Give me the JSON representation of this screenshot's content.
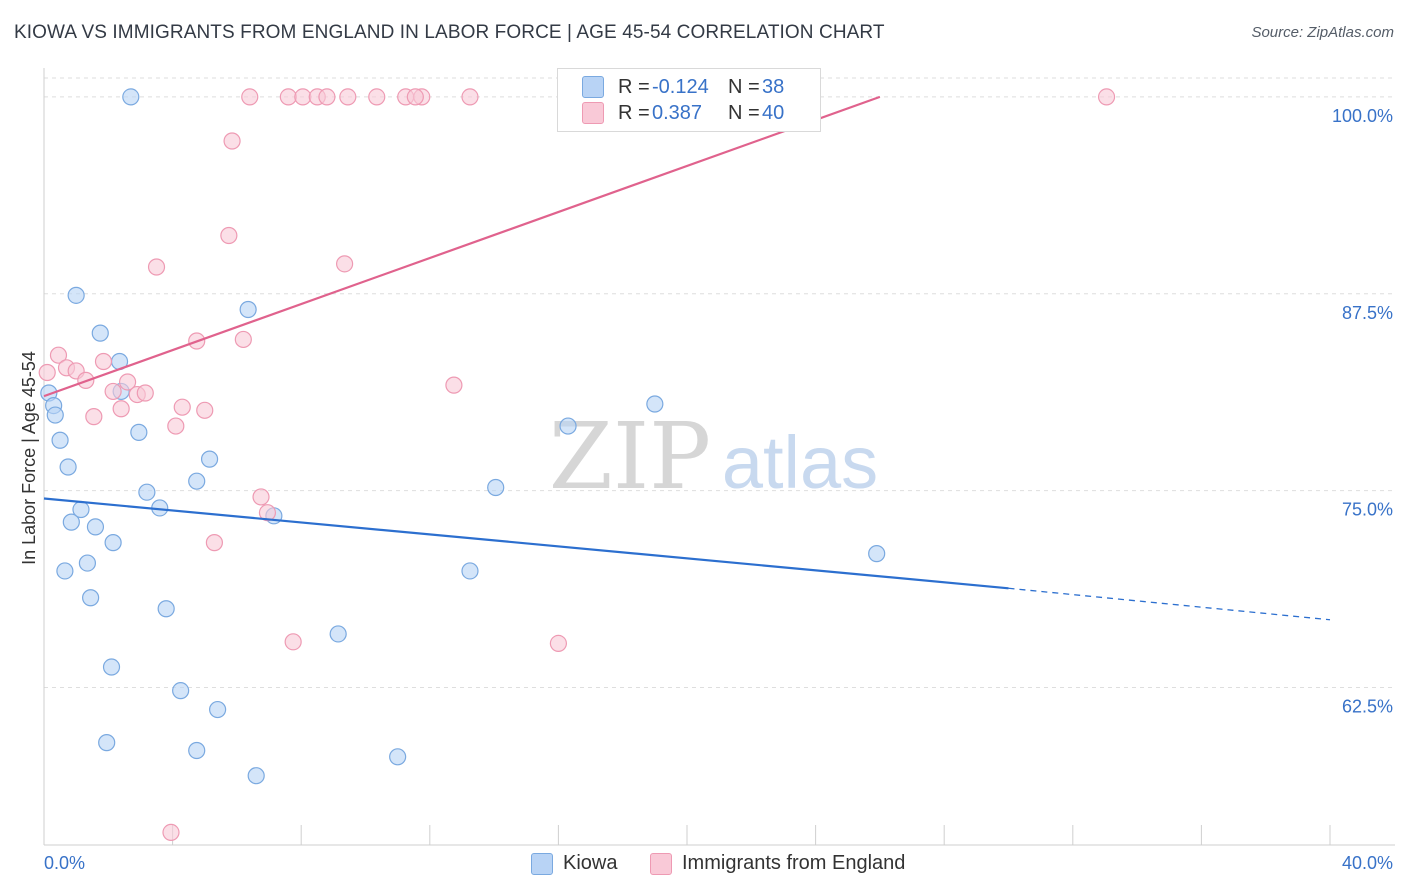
{
  "title": "KIOWA VS IMMIGRANTS FROM ENGLAND IN LABOR FORCE | AGE 45-54 CORRELATION CHART",
  "source": "Source: ZipAtlas.com",
  "watermark": {
    "zip": "ZIP",
    "atlas": "atlas"
  },
  "legend": {
    "kiowa": {
      "r_label": "R =",
      "r_value": "-0.124",
      "n_label": "N =",
      "n_value": "38"
    },
    "england": {
      "r_label": "R =",
      "r_value": "0.387",
      "n_label": "N =",
      "n_value": "40"
    }
  },
  "colors": {
    "kiowa_fill": "#b8d3f5",
    "kiowa_stroke": "#7aa9e0",
    "kiowa_line": "#2c6fcf",
    "england_fill": "#f9c9d7",
    "england_stroke": "#ee9ab3",
    "england_line": "#e0628d",
    "axis_text": "#3872c8",
    "grid": "#dedede"
  },
  "chart_data": {
    "type": "scatter",
    "title": "KIOWA VS IMMIGRANTS FROM ENGLAND IN LABOR FORCE | AGE 45-54 CORRELATION CHART",
    "xlabel": "",
    "ylabel": "In Labor Force | Age 45-54",
    "xlim": [
      0,
      40
    ],
    "ylim": [
      52.5,
      101.2
    ],
    "x_tick_labels": [
      "0.0%",
      "40.0%"
    ],
    "y_ticks": [
      62.5,
      75.0,
      87.5,
      100.0
    ],
    "y_tick_labels": [
      "62.5%",
      "75.0%",
      "87.5%",
      "100.0%"
    ],
    "series": [
      {
        "name": "Kiowa",
        "points": [
          [
            0.15,
            81.2
          ],
          [
            0.3,
            80.4
          ],
          [
            0.35,
            79.8
          ],
          [
            0.5,
            78.2
          ],
          [
            0.75,
            76.5
          ],
          [
            0.85,
            73.0
          ],
          [
            1.0,
            87.4
          ],
          [
            1.15,
            73.8
          ],
          [
            1.35,
            70.4
          ],
          [
            0.65,
            69.9
          ],
          [
            1.45,
            68.2
          ],
          [
            1.6,
            72.7
          ],
          [
            1.75,
            85.0
          ],
          [
            2.15,
            71.7
          ],
          [
            2.35,
            83.2
          ],
          [
            2.4,
            81.3
          ],
          [
            2.1,
            63.8
          ],
          [
            1.95,
            59.0
          ],
          [
            2.7,
            100.0
          ],
          [
            2.95,
            78.7
          ],
          [
            3.2,
            74.9
          ],
          [
            3.6,
            73.9
          ],
          [
            3.8,
            67.5
          ],
          [
            4.25,
            62.3
          ],
          [
            4.75,
            75.6
          ],
          [
            4.75,
            58.5
          ],
          [
            5.15,
            77.0
          ],
          [
            5.4,
            61.1
          ],
          [
            6.35,
            86.5
          ],
          [
            6.6,
            56.9
          ],
          [
            7.15,
            73.4
          ],
          [
            9.15,
            65.9
          ],
          [
            11.0,
            58.1
          ],
          [
            13.25,
            69.9
          ],
          [
            14.05,
            75.2
          ],
          [
            16.3,
            79.1
          ],
          [
            19.0,
            80.5
          ],
          [
            25.9,
            71.0
          ]
        ],
        "trend": {
          "x0": 0,
          "y0": 74.5,
          "x1": 30,
          "y1": 68.8,
          "dashed_to_x": 40,
          "dashed_to_y": 66.8
        }
      },
      {
        "name": "Immigrants from England",
        "points": [
          [
            0.1,
            82.5
          ],
          [
            0.45,
            83.6
          ],
          [
            0.7,
            82.8
          ],
          [
            1.0,
            82.6
          ],
          [
            1.3,
            82.0
          ],
          [
            1.55,
            79.7
          ],
          [
            1.85,
            83.2
          ],
          [
            2.15,
            81.3
          ],
          [
            2.4,
            80.2
          ],
          [
            2.6,
            81.9
          ],
          [
            2.9,
            81.1
          ],
          [
            3.15,
            81.2
          ],
          [
            3.5,
            89.2
          ],
          [
            4.1,
            79.1
          ],
          [
            4.3,
            80.3
          ],
          [
            4.75,
            84.5
          ],
          [
            5.0,
            80.1
          ],
          [
            5.3,
            71.7
          ],
          [
            5.75,
            91.2
          ],
          [
            5.85,
            97.2
          ],
          [
            6.2,
            84.6
          ],
          [
            6.4,
            100.0
          ],
          [
            6.75,
            74.6
          ],
          [
            6.95,
            73.6
          ],
          [
            7.6,
            100.0
          ],
          [
            7.75,
            65.4
          ],
          [
            8.05,
            100.0
          ],
          [
            8.5,
            100.0
          ],
          [
            8.8,
            100.0
          ],
          [
            9.35,
            89.4
          ],
          [
            9.45,
            100.0
          ],
          [
            10.35,
            100.0
          ],
          [
            11.25,
            100.0
          ],
          [
            11.75,
            100.0
          ],
          [
            12.75,
            81.7
          ],
          [
            13.25,
            100.0
          ],
          [
            16.0,
            65.3
          ],
          [
            33.05,
            100.0
          ],
          [
            3.95,
            53.3
          ],
          [
            11.55,
            100.0
          ]
        ],
        "trend": {
          "x0": 0,
          "y0": 81.0,
          "x1": 26.0,
          "y1": 100.0
        }
      }
    ]
  }
}
